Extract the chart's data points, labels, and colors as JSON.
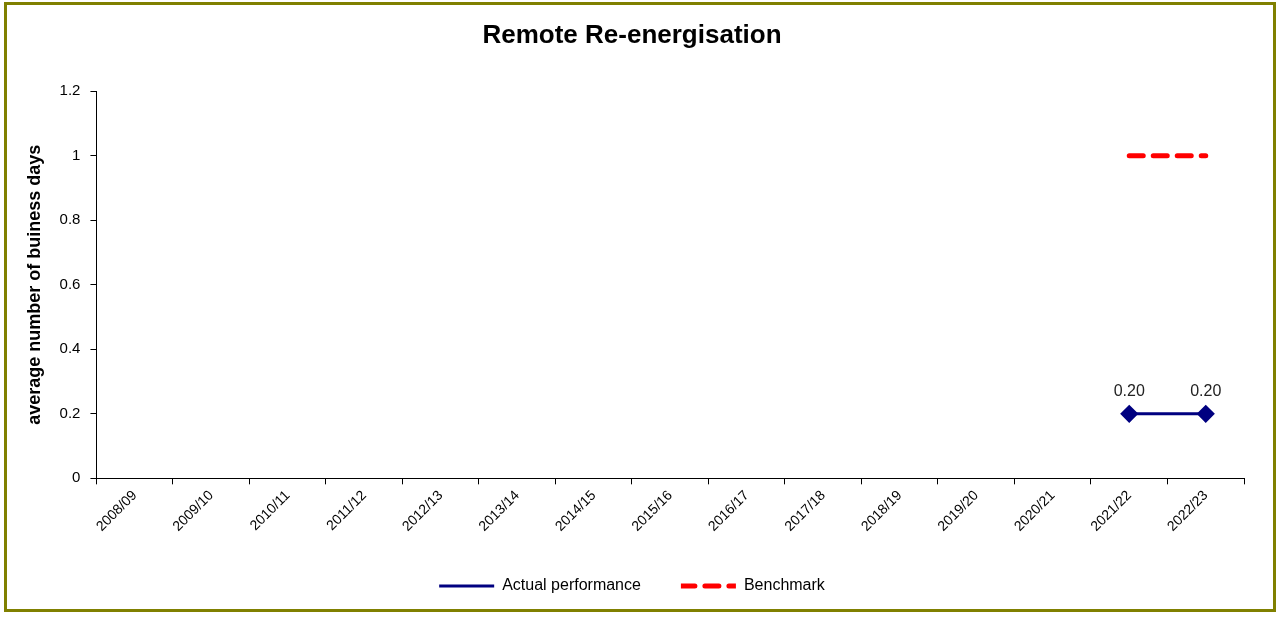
{
  "chart_data": {
    "type": "line",
    "title": "Remote Re-energisation",
    "ylabel": "average number of buiness days",
    "categories": [
      "2008/09",
      "2009/10",
      "2010/11",
      "2011/12",
      "2012/13",
      "2013/14",
      "2014/15",
      "2015/16",
      "2016/17",
      "2017/18",
      "2018/19",
      "2019/20",
      "2020/21",
      "2021/22",
      "2022/23"
    ],
    "series": [
      {
        "name": "Actual performance",
        "color": "#000080",
        "marker": "diamond",
        "line_style": "solid",
        "values": [
          null,
          null,
          null,
          null,
          null,
          null,
          null,
          null,
          null,
          null,
          null,
          null,
          null,
          0.2,
          0.2
        ],
        "value_labels": [
          null,
          null,
          null,
          null,
          null,
          null,
          null,
          null,
          null,
          null,
          null,
          null,
          null,
          "0.20",
          "0.20"
        ]
      },
      {
        "name": "Benchmark",
        "color": "#ff0000",
        "marker": "none",
        "line_style": "dashed",
        "values": [
          null,
          null,
          null,
          null,
          null,
          null,
          null,
          null,
          null,
          null,
          null,
          null,
          null,
          1,
          1
        ]
      }
    ],
    "ylim": [
      0,
      1.2
    ],
    "yticks": [
      0,
      0.2,
      0.4,
      0.6,
      0.8,
      1,
      1.2
    ],
    "grid": false,
    "legend": "bottom"
  }
}
